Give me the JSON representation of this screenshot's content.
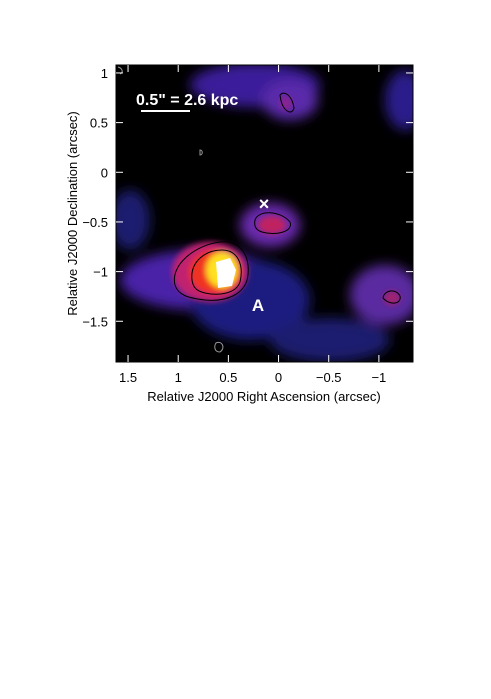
{
  "chart_data": {
    "type": "image",
    "x_label": "Relative J2000 Right Ascension (arcsec)",
    "y_label": "Relative J2000 Declination (arcsec)",
    "xlim": [
      1.62,
      -1.34
    ],
    "ylim": [
      -1.91,
      1.08
    ],
    "xticks": [
      1.5,
      1,
      0.5,
      0,
      {
        "value": -0.5,
        "label": "−0.5"
      },
      {
        "value": -1,
        "label": "−1"
      }
    ],
    "yticks": [
      1,
      0.5,
      0,
      {
        "value": -0.5,
        "label": "−0.5"
      },
      {
        "value": -1,
        "label": "−1"
      },
      {
        "value": -1.5,
        "label": "−1.5"
      }
    ],
    "annotations": [
      "0.5\" = 2.6 kpc",
      "A",
      "×"
    ]
  }
}
